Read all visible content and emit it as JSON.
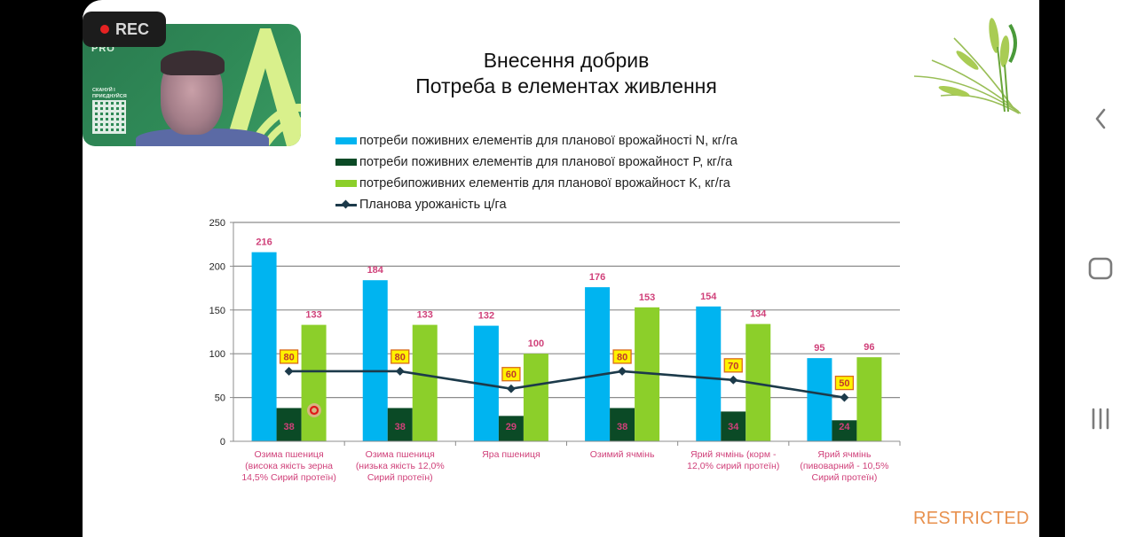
{
  "slide": {
    "title_line1": "Внесення добрив",
    "title_line2": "Потреба в елементах живлення",
    "footer_label": "RESTRICTED"
  },
  "recording": {
    "label": "REC",
    "status_color": "#e52222"
  },
  "webcam": {
    "brand_text": "PRO",
    "scan_text_line1": "СКАНУЙ І",
    "scan_text_line2": "ПРИЄДНУЙСЯ"
  },
  "nav": {
    "back": "back-icon",
    "home": "home-icon",
    "recents": "recents-icon"
  },
  "colors": {
    "n": "#00b4f0",
    "p": "#0b4a26",
    "k": "#8ccf2a",
    "line": "#1c3a4a",
    "value_label": "#d0417a",
    "line_label_bg": "#fff200",
    "line_label_border": "#d96b1c",
    "line_label_text": "#c0392b",
    "category_label": "#d0417a"
  },
  "chart_data": {
    "type": "bar",
    "title": "Внесення добрив / Потреба в елементах живлення",
    "xlabel": "",
    "ylabel": "",
    "ylim": [
      0,
      250
    ],
    "yticks": [
      0,
      50,
      100,
      150,
      200,
      250
    ],
    "grid": true,
    "legend_position": "top",
    "categories": [
      [
        "Озима пшениця",
        "(висока якість зерна",
        "14,5% Сирий протеїн)"
      ],
      [
        "Озима пшениця",
        "(низька якість 12,0%",
        "Сирий протеїн)"
      ],
      [
        "Яра пшениця"
      ],
      [
        "Озимий ячмінь"
      ],
      [
        "Ярий ячмінь (корм -",
        "12,0% сирий протеїн)"
      ],
      [
        "Ярий ячмінь",
        "(пивоварний - 10,5%",
        "Сирий протеїн)"
      ]
    ],
    "series": [
      {
        "name": "потреби поживних елементів для планової врожайності N, кг/га",
        "type": "bar",
        "values": [
          216,
          184,
          132,
          176,
          154,
          95
        ]
      },
      {
        "name": "потреби поживних елементів для планової врожайност P, кг/га",
        "type": "bar",
        "values": [
          38,
          38,
          29,
          38,
          34,
          24
        ]
      },
      {
        "name": "потребипоживних елементів для планової врожайност K, кг/га",
        "type": "bar",
        "values": [
          133,
          133,
          100,
          153,
          134,
          96
        ]
      },
      {
        "name": "Планова урожаність ц/га",
        "type": "line",
        "values": [
          80,
          80,
          60,
          80,
          70,
          50
        ]
      }
    ]
  }
}
